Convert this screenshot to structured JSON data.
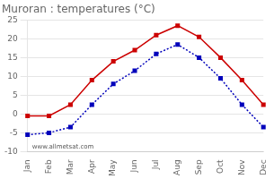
{
  "chart_data": {
    "type": "line",
    "title": "Muroran : temperatures (°C)",
    "categories": [
      "Jan",
      "Feb",
      "Mar",
      "Apr",
      "May",
      "Jun",
      "Jul",
      "Aug",
      "Sep",
      "Oct",
      "Nov",
      "Dec"
    ],
    "series": [
      {
        "color": "#cc0000",
        "marker": "square",
        "line_style": "solid",
        "values": [
          -0.5,
          -0.5,
          2.5,
          9.0,
          14.0,
          17.0,
          21.0,
          23.5,
          20.5,
          15.0,
          9.0,
          2.5
        ]
      },
      {
        "color": "#0000bb",
        "marker": "square",
        "line_style": "dotted",
        "values": [
          -5.5,
          -5.0,
          -3.5,
          2.5,
          8.0,
          11.5,
          16.0,
          18.5,
          15.0,
          9.5,
          2.5,
          -3.5
        ]
      }
    ],
    "ylim": [
      -10,
      25
    ],
    "yticks": [
      -10,
      -5,
      0,
      5,
      10,
      15,
      20,
      25
    ],
    "grid": "y",
    "annotation": "www.allmetsat.com"
  }
}
